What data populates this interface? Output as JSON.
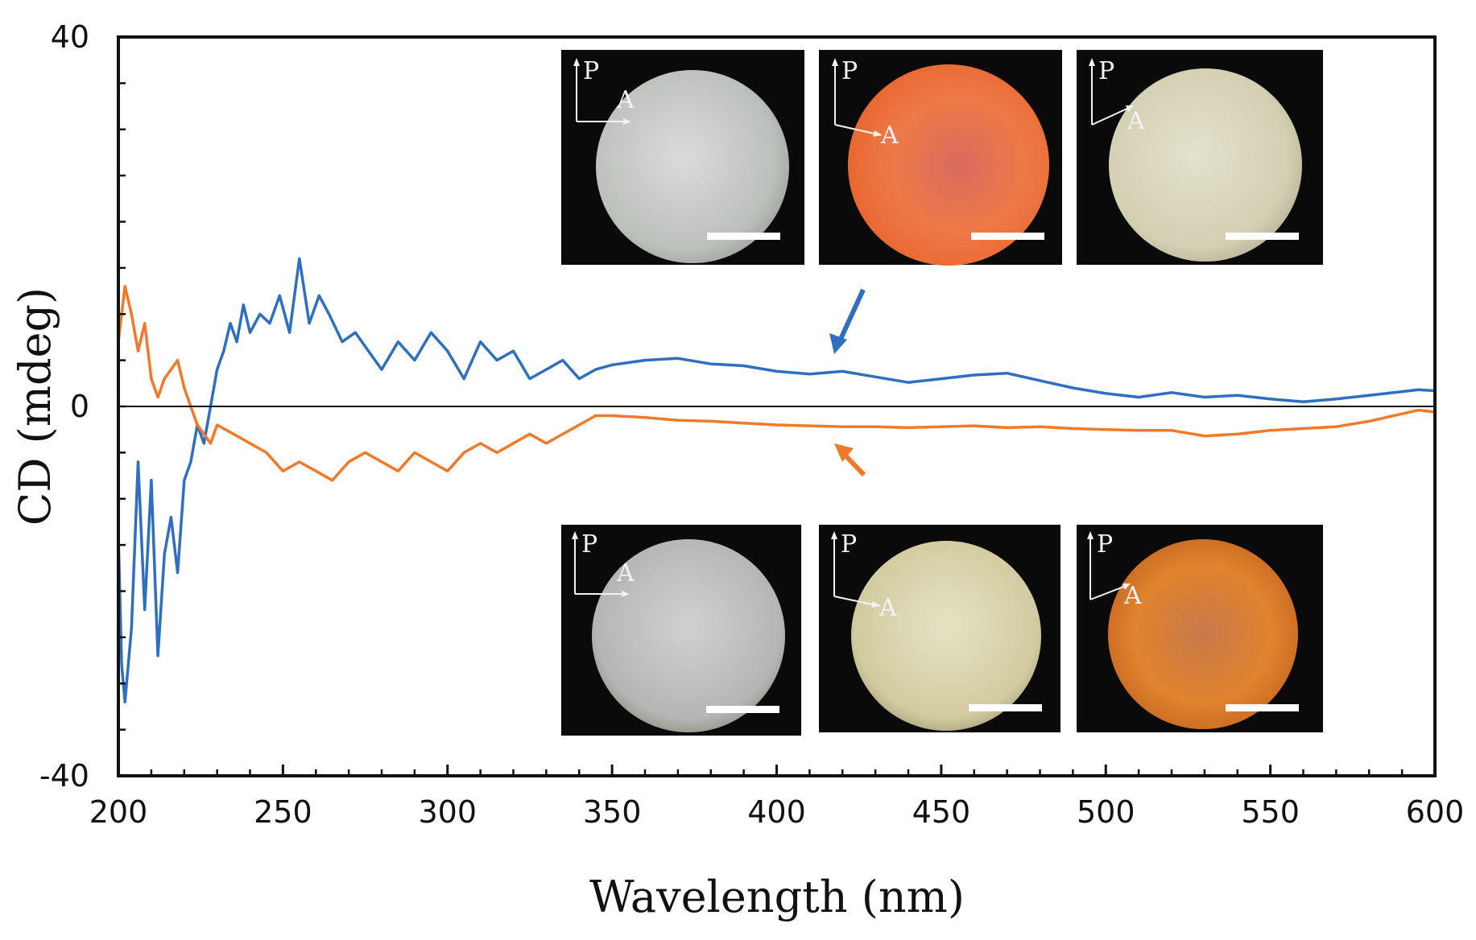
{
  "chart_data": {
    "type": "line",
    "xlabel": "Wavelength (nm)",
    "ylabel": "CD (mdeg)",
    "xlim": [
      200,
      600
    ],
    "ylim": [
      -40,
      40
    ],
    "x_ticks": [
      200,
      250,
      300,
      350,
      400,
      450,
      500,
      550,
      600
    ],
    "y_ticks": [
      -40,
      0,
      40
    ],
    "grid": false,
    "legend": "none",
    "series": [
      {
        "color": "#2f6fbf",
        "x": [
          200,
          201,
          202,
          204,
          206,
          208,
          210,
          212,
          214,
          216,
          218,
          220,
          222,
          224,
          226,
          228,
          230,
          232,
          234,
          236,
          238,
          240,
          243,
          246,
          249,
          252,
          255,
          258,
          261,
          264,
          268,
          272,
          276,
          280,
          285,
          290,
          295,
          300,
          305,
          310,
          315,
          320,
          325,
          330,
          335,
          340,
          345,
          350,
          360,
          370,
          380,
          390,
          400,
          410,
          420,
          430,
          440,
          450,
          460,
          470,
          480,
          490,
          500,
          510,
          520,
          530,
          540,
          550,
          560,
          570,
          580,
          590,
          595,
          600
        ],
        "y": [
          -14,
          -28,
          -32,
          -24,
          -6,
          -22,
          -8,
          -27,
          -16,
          -12,
          -18,
          -8,
          -6,
          -2,
          -4,
          0,
          4,
          6,
          9,
          7,
          11,
          8,
          10,
          9,
          12,
          8,
          16,
          9,
          12,
          10,
          7,
          8,
          6,
          4,
          7,
          5,
          8,
          6,
          3,
          7,
          5,
          6,
          3,
          4,
          5,
          3,
          4,
          4.5,
          5,
          5.2,
          4.6,
          4.4,
          3.8,
          3.5,
          3.8,
          3.2,
          2.6,
          3.0,
          3.4,
          3.6,
          2.8,
          2.0,
          1.4,
          1.0,
          1.5,
          1.0,
          1.2,
          0.8,
          0.5,
          0.8,
          1.2,
          1.6,
          1.8,
          1.7
        ]
      },
      {
        "color": "#f07a2a",
        "x": [
          200,
          202,
          204,
          206,
          208,
          210,
          212,
          214,
          216,
          218,
          220,
          222,
          224,
          226,
          228,
          230,
          235,
          240,
          245,
          250,
          255,
          260,
          265,
          270,
          275,
          280,
          285,
          290,
          295,
          300,
          305,
          310,
          315,
          320,
          325,
          330,
          335,
          340,
          345,
          350,
          360,
          370,
          380,
          390,
          400,
          410,
          420,
          430,
          440,
          450,
          460,
          470,
          480,
          490,
          500,
          510,
          520,
          530,
          540,
          550,
          560,
          570,
          580,
          590,
          595,
          600
        ],
        "y": [
          7,
          13,
          10,
          6,
          9,
          3,
          1,
          3,
          4,
          5,
          2,
          0,
          -2,
          -3,
          -4,
          -2,
          -3,
          -4,
          -5,
          -7,
          -6,
          -7,
          -8,
          -6,
          -5,
          -6,
          -7,
          -5,
          -6,
          -7,
          -5,
          -4,
          -5,
          -4,
          -3,
          -4,
          -3,
          -2,
          -1,
          -1,
          -1.2,
          -1.5,
          -1.6,
          -1.8,
          -2.0,
          -2.1,
          -2.2,
          -2.2,
          -2.3,
          -2.2,
          -2.1,
          -2.3,
          -2.2,
          -2.4,
          -2.5,
          -2.6,
          -2.6,
          -3.2,
          -3.0,
          -2.6,
          -2.4,
          -2.2,
          -1.6,
          -0.8,
          -0.4,
          -0.6
        ]
      }
    ],
    "annotations": [
      {
        "text": "P",
        "color": "#f2f2f2"
      },
      {
        "text": "A",
        "color": "#f2f2f2"
      }
    ]
  }
}
